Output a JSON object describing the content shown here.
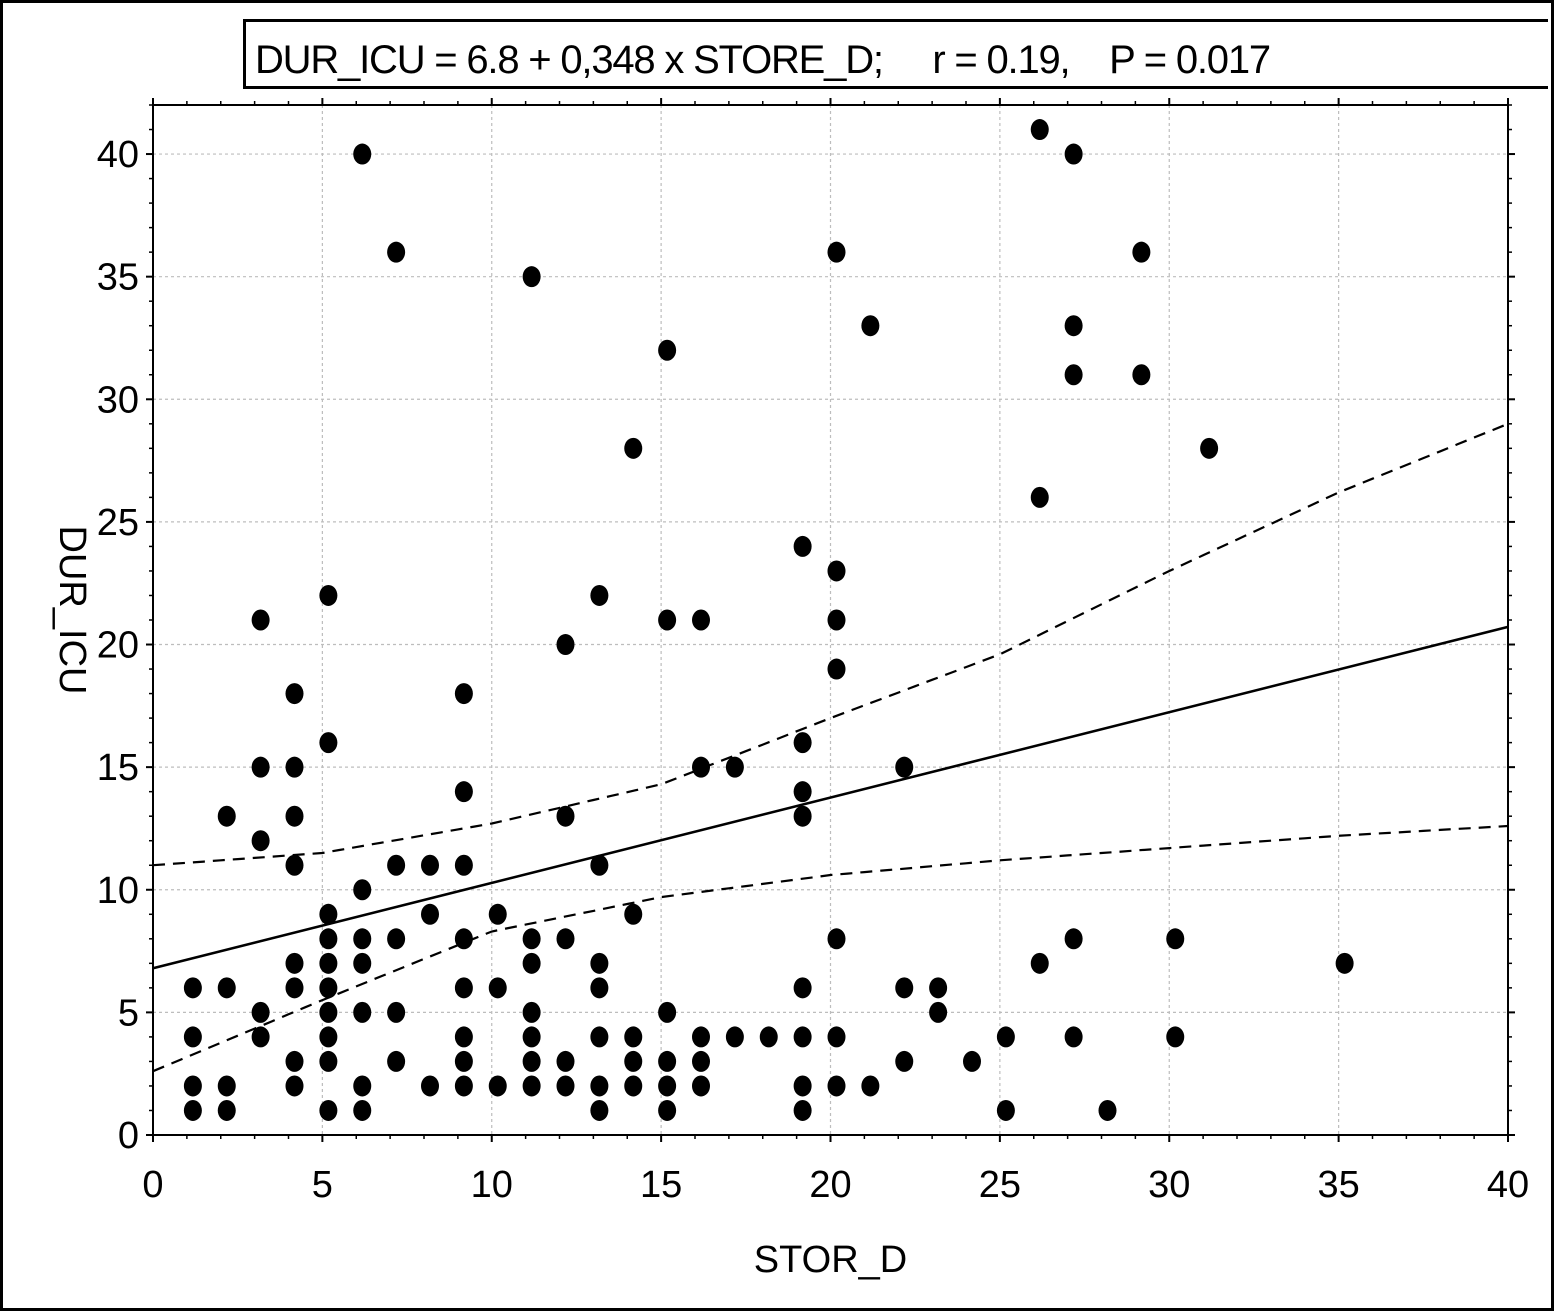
{
  "chart_data": {
    "type": "scatter",
    "title": "DUR_ICU = 6.8 + 0,348 x STORE_D;     r = 0.19,    P = 0.017",
    "xlabel": "STOR_D",
    "ylabel": "DUR_ICU",
    "xlim": [
      0,
      40
    ],
    "ylim": [
      0,
      42
    ],
    "xticks": [
      0,
      5,
      10,
      15,
      20,
      25,
      30,
      35,
      40
    ],
    "yticks": [
      0,
      5,
      10,
      15,
      20,
      25,
      30,
      35,
      40
    ],
    "grid": true,
    "regression": {
      "intercept": 6.8,
      "slope": 0.348
    },
    "confidence_band": {
      "upper": [
        [
          0,
          11.0
        ],
        [
          5,
          11.5
        ],
        [
          10,
          12.7
        ],
        [
          15,
          14.3
        ],
        [
          20,
          17.0
        ],
        [
          25,
          19.6
        ],
        [
          30,
          23.0
        ],
        [
          35,
          26.2
        ],
        [
          40,
          29.0
        ]
      ],
      "lower": [
        [
          0,
          2.6
        ],
        [
          5,
          5.5
        ],
        [
          10,
          8.3
        ],
        [
          15,
          9.7
        ],
        [
          20,
          10.6
        ],
        [
          25,
          11.2
        ],
        [
          30,
          11.7
        ],
        [
          35,
          12.2
        ],
        [
          40,
          12.6
        ]
      ]
    },
    "points": [
      [
        1,
        6
      ],
      [
        1,
        4
      ],
      [
        1,
        2
      ],
      [
        1,
        1
      ],
      [
        2,
        6
      ],
      [
        2,
        2
      ],
      [
        2,
        1
      ],
      [
        2,
        13
      ],
      [
        3,
        21
      ],
      [
        3,
        15
      ],
      [
        3,
        12
      ],
      [
        3,
        5
      ],
      [
        3,
        4
      ],
      [
        4,
        18
      ],
      [
        4,
        15
      ],
      [
        4,
        13
      ],
      [
        4,
        11
      ],
      [
        4,
        7
      ],
      [
        4,
        6
      ],
      [
        4,
        3
      ],
      [
        4,
        2
      ],
      [
        5,
        22
      ],
      [
        5,
        16
      ],
      [
        5,
        9
      ],
      [
        5,
        8
      ],
      [
        5,
        7
      ],
      [
        5,
        6
      ],
      [
        5,
        5
      ],
      [
        5,
        4
      ],
      [
        5,
        3
      ],
      [
        5,
        1
      ],
      [
        6,
        40
      ],
      [
        6,
        10
      ],
      [
        6,
        8
      ],
      [
        6,
        7
      ],
      [
        6,
        5
      ],
      [
        6,
        2
      ],
      [
        6,
        1
      ],
      [
        7,
        36
      ],
      [
        7,
        11
      ],
      [
        7,
        8
      ],
      [
        7,
        5
      ],
      [
        7,
        3
      ],
      [
        8,
        11
      ],
      [
        8,
        9
      ],
      [
        8,
        2
      ],
      [
        9,
        18
      ],
      [
        9,
        14
      ],
      [
        9,
        11
      ],
      [
        9,
        8
      ],
      [
        9,
        6
      ],
      [
        9,
        4
      ],
      [
        9,
        3
      ],
      [
        9,
        2
      ],
      [
        10,
        9
      ],
      [
        10,
        6
      ],
      [
        10,
        2
      ],
      [
        11,
        35
      ],
      [
        11,
        8
      ],
      [
        11,
        7
      ],
      [
        11,
        5
      ],
      [
        11,
        4
      ],
      [
        11,
        3
      ],
      [
        11,
        2
      ],
      [
        12,
        20
      ],
      [
        12,
        13
      ],
      [
        12,
        8
      ],
      [
        12,
        3
      ],
      [
        12,
        2
      ],
      [
        13,
        22
      ],
      [
        13,
        11
      ],
      [
        13,
        7
      ],
      [
        13,
        6
      ],
      [
        13,
        4
      ],
      [
        13,
        2
      ],
      [
        13,
        1
      ],
      [
        14,
        28
      ],
      [
        14,
        9
      ],
      [
        14,
        4
      ],
      [
        14,
        3
      ],
      [
        14,
        2
      ],
      [
        15,
        32
      ],
      [
        15,
        21
      ],
      [
        15,
        5
      ],
      [
        15,
        3
      ],
      [
        15,
        2
      ],
      [
        15,
        1
      ],
      [
        16,
        21
      ],
      [
        16,
        15
      ],
      [
        16,
        4
      ],
      [
        16,
        3
      ],
      [
        16,
        2
      ],
      [
        17,
        15
      ],
      [
        17,
        4
      ],
      [
        18,
        4
      ],
      [
        19,
        24
      ],
      [
        19,
        16
      ],
      [
        19,
        14
      ],
      [
        19,
        13
      ],
      [
        19,
        6
      ],
      [
        19,
        4
      ],
      [
        19,
        2
      ],
      [
        19,
        1
      ],
      [
        20,
        36
      ],
      [
        20,
        23
      ],
      [
        20,
        21
      ],
      [
        20,
        19
      ],
      [
        20,
        8
      ],
      [
        20,
        4
      ],
      [
        20,
        2
      ],
      [
        21,
        33
      ],
      [
        21,
        2
      ],
      [
        22,
        15
      ],
      [
        22,
        6
      ],
      [
        22,
        3
      ],
      [
        23,
        6
      ],
      [
        23,
        5
      ],
      [
        24,
        3
      ],
      [
        25,
        4
      ],
      [
        25,
        1
      ],
      [
        26,
        41
      ],
      [
        26,
        26
      ],
      [
        26,
        7
      ],
      [
        27,
        40
      ],
      [
        27,
        33
      ],
      [
        27,
        31
      ],
      [
        27,
        8
      ],
      [
        27,
        4
      ],
      [
        28,
        1
      ],
      [
        29,
        36
      ],
      [
        29,
        31
      ],
      [
        30,
        8
      ],
      [
        30,
        4
      ],
      [
        31,
        28
      ],
      [
        35,
        7
      ]
    ]
  }
}
